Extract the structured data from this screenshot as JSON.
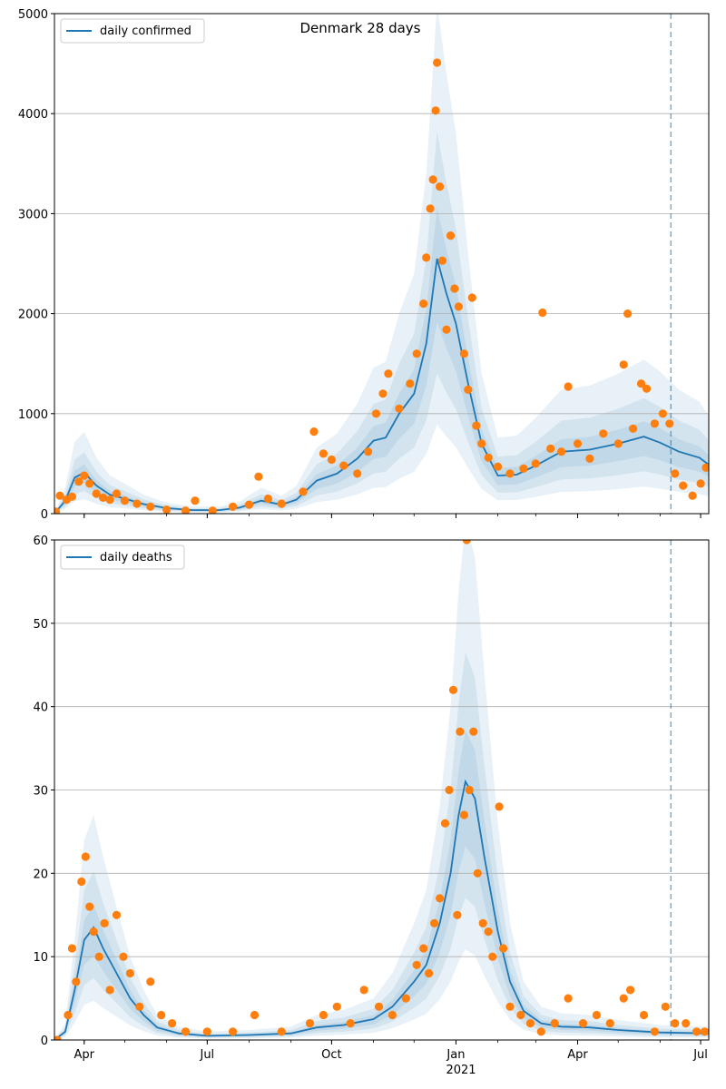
{
  "figure": {
    "title": "Denmark 28 days"
  },
  "chart_data": [
    {
      "type": "line",
      "title": "Denmark 28 days",
      "legend": {
        "placement": "top-left",
        "entries": [
          "daily confirmed"
        ]
      },
      "x_range": [
        "2020-03-10",
        "2021-07-07"
      ],
      "x_ticks": [
        {
          "date": "2020-04-01",
          "label": "Apr"
        },
        {
          "date": "2020-07-01",
          "label": "Jul"
        },
        {
          "date": "2020-10-01",
          "label": "Oct"
        },
        {
          "date": "2021-01-01",
          "label": "Jan"
        },
        {
          "date": "2021-04-01",
          "label": "Apr"
        },
        {
          "date": "2021-07-01",
          "label": "Jul"
        }
      ],
      "year_label": "2021",
      "ylim": [
        0,
        5000
      ],
      "y_ticks": [
        0,
        1000,
        2000,
        3000,
        4000,
        5000
      ],
      "grid": "horizontal",
      "forecast_start": "2021-06-09",
      "series": [
        {
          "name": "daily confirmed",
          "kind": "model-median",
          "color": "#1f77b4",
          "points": [
            [
              "2020-03-10",
              0
            ],
            [
              "2020-03-18",
              130
            ],
            [
              "2020-03-25",
              360
            ],
            [
              "2020-04-01",
              410
            ],
            [
              "2020-04-10",
              280
            ],
            [
              "2020-04-20",
              190
            ],
            [
              "2020-05-01",
              150
            ],
            [
              "2020-05-15",
              95
            ],
            [
              "2020-06-01",
              55
            ],
            [
              "2020-06-20",
              35
            ],
            [
              "2020-07-10",
              35
            ],
            [
              "2020-07-25",
              60
            ],
            [
              "2020-08-10",
              130
            ],
            [
              "2020-08-25",
              90
            ],
            [
              "2020-09-05",
              140
            ],
            [
              "2020-09-20",
              330
            ],
            [
              "2020-10-05",
              400
            ],
            [
              "2020-10-20",
              550
            ],
            [
              "2020-11-01",
              730
            ],
            [
              "2020-11-10",
              760
            ],
            [
              "2020-11-20",
              1000
            ],
            [
              "2020-12-01",
              1200
            ],
            [
              "2020-12-10",
              1700
            ],
            [
              "2020-12-18",
              2550
            ],
            [
              "2020-12-25",
              2200
            ],
            [
              "2021-01-01",
              1900
            ],
            [
              "2021-01-10",
              1300
            ],
            [
              "2021-01-20",
              700
            ],
            [
              "2021-02-01",
              380
            ],
            [
              "2021-02-15",
              390
            ],
            [
              "2021-03-01",
              480
            ],
            [
              "2021-03-20",
              620
            ],
            [
              "2021-04-10",
              640
            ],
            [
              "2021-05-01",
              700
            ],
            [
              "2021-05-20",
              770
            ],
            [
              "2021-06-01",
              710
            ],
            [
              "2021-06-15",
              620
            ],
            [
              "2021-06-30",
              560
            ],
            [
              "2021-07-07",
              490
            ]
          ]
        },
        {
          "name": "",
          "kind": "observed",
          "color": "#ff7f0e",
          "points": [
            [
              "2020-03-11",
              20
            ],
            [
              "2020-03-14",
              180
            ],
            [
              "2020-03-19",
              140
            ],
            [
              "2020-03-23",
              170
            ],
            [
              "2020-03-28",
              320
            ],
            [
              "2020-04-01",
              380
            ],
            [
              "2020-04-05",
              300
            ],
            [
              "2020-04-10",
              200
            ],
            [
              "2020-04-15",
              160
            ],
            [
              "2020-04-20",
              140
            ],
            [
              "2020-04-25",
              200
            ],
            [
              "2020-05-01",
              130
            ],
            [
              "2020-05-10",
              100
            ],
            [
              "2020-05-20",
              70
            ],
            [
              "2020-06-01",
              40
            ],
            [
              "2020-06-15",
              30
            ],
            [
              "2020-06-22",
              130
            ],
            [
              "2020-07-05",
              30
            ],
            [
              "2020-07-20",
              70
            ],
            [
              "2020-08-01",
              90
            ],
            [
              "2020-08-08",
              370
            ],
            [
              "2020-08-15",
              150
            ],
            [
              "2020-08-25",
              100
            ],
            [
              "2020-09-10",
              220
            ],
            [
              "2020-09-18",
              820
            ],
            [
              "2020-09-25",
              600
            ],
            [
              "2020-10-01",
              540
            ],
            [
              "2020-10-10",
              480
            ],
            [
              "2020-10-20",
              400
            ],
            [
              "2020-10-28",
              620
            ],
            [
              "2020-11-03",
              1000
            ],
            [
              "2020-11-08",
              1200
            ],
            [
              "2020-11-12",
              1400
            ],
            [
              "2020-11-20",
              1050
            ],
            [
              "2020-11-28",
              1300
            ],
            [
              "2020-12-03",
              1600
            ],
            [
              "2020-12-08",
              2100
            ],
            [
              "2020-12-10",
              2560
            ],
            [
              "2020-12-13",
              3050
            ],
            [
              "2020-12-15",
              3340
            ],
            [
              "2020-12-17",
              4030
            ],
            [
              "2020-12-18",
              4510
            ],
            [
              "2020-12-20",
              3270
            ],
            [
              "2020-12-22",
              2530
            ],
            [
              "2020-12-25",
              1840
            ],
            [
              "2020-12-28",
              2780
            ],
            [
              "2020-12-31",
              2250
            ],
            [
              "2021-01-03",
              2070
            ],
            [
              "2021-01-07",
              1600
            ],
            [
              "2021-01-10",
              1240
            ],
            [
              "2021-01-13",
              2160
            ],
            [
              "2021-01-16",
              880
            ],
            [
              "2021-01-20",
              700
            ],
            [
              "2021-01-25",
              560
            ],
            [
              "2021-02-01",
              470
            ],
            [
              "2021-02-10",
              400
            ],
            [
              "2021-02-20",
              450
            ],
            [
              "2021-03-01",
              500
            ],
            [
              "2021-03-06",
              2010
            ],
            [
              "2021-03-12",
              650
            ],
            [
              "2021-03-20",
              620
            ],
            [
              "2021-03-25",
              1270
            ],
            [
              "2021-04-01",
              700
            ],
            [
              "2021-04-10",
              550
            ],
            [
              "2021-04-20",
              800
            ],
            [
              "2021-05-01",
              700
            ],
            [
              "2021-05-05",
              1490
            ],
            [
              "2021-05-08",
              2000
            ],
            [
              "2021-05-12",
              850
            ],
            [
              "2021-05-18",
              1300
            ],
            [
              "2021-05-22",
              1250
            ],
            [
              "2021-05-28",
              900
            ],
            [
              "2021-06-03",
              1000
            ],
            [
              "2021-06-08",
              900
            ],
            [
              "2021-06-12",
              400
            ],
            [
              "2021-06-18",
              280
            ],
            [
              "2021-06-25",
              180
            ],
            [
              "2021-07-01",
              300
            ],
            [
              "2021-07-05",
              460
            ]
          ]
        }
      ]
    },
    {
      "type": "line",
      "legend": {
        "placement": "top-left",
        "entries": [
          "daily deaths"
        ]
      },
      "x_range": [
        "2020-03-10",
        "2021-07-07"
      ],
      "ylim": [
        0,
        60
      ],
      "y_ticks": [
        0,
        10,
        20,
        30,
        40,
        50,
        60
      ],
      "grid": "horizontal",
      "forecast_start": "2021-06-09",
      "series": [
        {
          "name": "daily deaths",
          "kind": "model-median",
          "color": "#1f77b4",
          "points": [
            [
              "2020-03-10",
              0
            ],
            [
              "2020-03-18",
              1
            ],
            [
              "2020-03-25",
              6
            ],
            [
              "2020-04-01",
              12
            ],
            [
              "2020-04-08",
              13.5
            ],
            [
              "2020-04-15",
              11
            ],
            [
              "2020-04-25",
              8
            ],
            [
              "2020-05-05",
              5
            ],
            [
              "2020-05-15",
              3
            ],
            [
              "2020-05-25",
              1.5
            ],
            [
              "2020-06-10",
              0.8
            ],
            [
              "2020-07-01",
              0.5
            ],
            [
              "2020-08-01",
              0.6
            ],
            [
              "2020-09-01",
              0.8
            ],
            [
              "2020-09-20",
              1.5
            ],
            [
              "2020-10-10",
              1.8
            ],
            [
              "2020-11-01",
              2.5
            ],
            [
              "2020-11-15",
              4
            ],
            [
              "2020-12-01",
              7
            ],
            [
              "2020-12-10",
              9
            ],
            [
              "2020-12-20",
              14
            ],
            [
              "2020-12-28",
              20
            ],
            [
              "2021-01-03",
              27
            ],
            [
              "2021-01-08",
              31
            ],
            [
              "2021-01-15",
              29
            ],
            [
              "2021-01-22",
              22
            ],
            [
              "2021-02-01",
              13
            ],
            [
              "2021-02-10",
              7
            ],
            [
              "2021-02-20",
              3.5
            ],
            [
              "2021-03-05",
              2
            ],
            [
              "2021-03-20",
              1.6
            ],
            [
              "2021-04-10",
              1.5
            ],
            [
              "2021-05-01",
              1.2
            ],
            [
              "2021-06-01",
              0.9
            ],
            [
              "2021-07-07",
              0.8
            ]
          ]
        },
        {
          "name": "",
          "kind": "observed",
          "color": "#ff7f0e",
          "points": [
            [
              "2020-03-12",
              0
            ],
            [
              "2020-03-20",
              3
            ],
            [
              "2020-03-23",
              11
            ],
            [
              "2020-03-26",
              7
            ],
            [
              "2020-03-30",
              19
            ],
            [
              "2020-04-02",
              22
            ],
            [
              "2020-04-05",
              16
            ],
            [
              "2020-04-08",
              13
            ],
            [
              "2020-04-12",
              10
            ],
            [
              "2020-04-16",
              14
            ],
            [
              "2020-04-20",
              6
            ],
            [
              "2020-04-25",
              15
            ],
            [
              "2020-04-30",
              10
            ],
            [
              "2020-05-05",
              8
            ],
            [
              "2020-05-12",
              4
            ],
            [
              "2020-05-20",
              7
            ],
            [
              "2020-05-28",
              3
            ],
            [
              "2020-06-05",
              2
            ],
            [
              "2020-06-15",
              1
            ],
            [
              "2020-07-01",
              1
            ],
            [
              "2020-07-20",
              1
            ],
            [
              "2020-08-05",
              3
            ],
            [
              "2020-08-25",
              1
            ],
            [
              "2020-09-15",
              2
            ],
            [
              "2020-09-25",
              3
            ],
            [
              "2020-10-05",
              4
            ],
            [
              "2020-10-15",
              2
            ],
            [
              "2020-10-25",
              6
            ],
            [
              "2020-11-05",
              4
            ],
            [
              "2020-11-15",
              3
            ],
            [
              "2020-11-25",
              5
            ],
            [
              "2020-12-03",
              9
            ],
            [
              "2020-12-08",
              11
            ],
            [
              "2020-12-12",
              8
            ],
            [
              "2020-12-16",
              14
            ],
            [
              "2020-12-20",
              17
            ],
            [
              "2020-12-24",
              26
            ],
            [
              "2020-12-27",
              30
            ],
            [
              "2020-12-30",
              42
            ],
            [
              "2021-01-02",
              15
            ],
            [
              "2021-01-04",
              37
            ],
            [
              "2021-01-07",
              27
            ],
            [
              "2021-01-09",
              60
            ],
            [
              "2021-01-11",
              30
            ],
            [
              "2021-01-14",
              37
            ],
            [
              "2021-01-17",
              20
            ],
            [
              "2021-01-21",
              14
            ],
            [
              "2021-01-25",
              13
            ],
            [
              "2021-01-28",
              10
            ],
            [
              "2021-02-02",
              28
            ],
            [
              "2021-02-05",
              11
            ],
            [
              "2021-02-10",
              4
            ],
            [
              "2021-02-18",
              3
            ],
            [
              "2021-02-25",
              2
            ],
            [
              "2021-03-05",
              1
            ],
            [
              "2021-03-15",
              2
            ],
            [
              "2021-03-25",
              5
            ],
            [
              "2021-04-05",
              2
            ],
            [
              "2021-04-15",
              3
            ],
            [
              "2021-04-25",
              2
            ],
            [
              "2021-05-05",
              5
            ],
            [
              "2021-05-10",
              6
            ],
            [
              "2021-05-20",
              3
            ],
            [
              "2021-05-28",
              1
            ],
            [
              "2021-06-05",
              4
            ],
            [
              "2021-06-12",
              2
            ],
            [
              "2021-06-20",
              2
            ],
            [
              "2021-06-28",
              1
            ],
            [
              "2021-07-04",
              1
            ]
          ]
        }
      ]
    }
  ]
}
